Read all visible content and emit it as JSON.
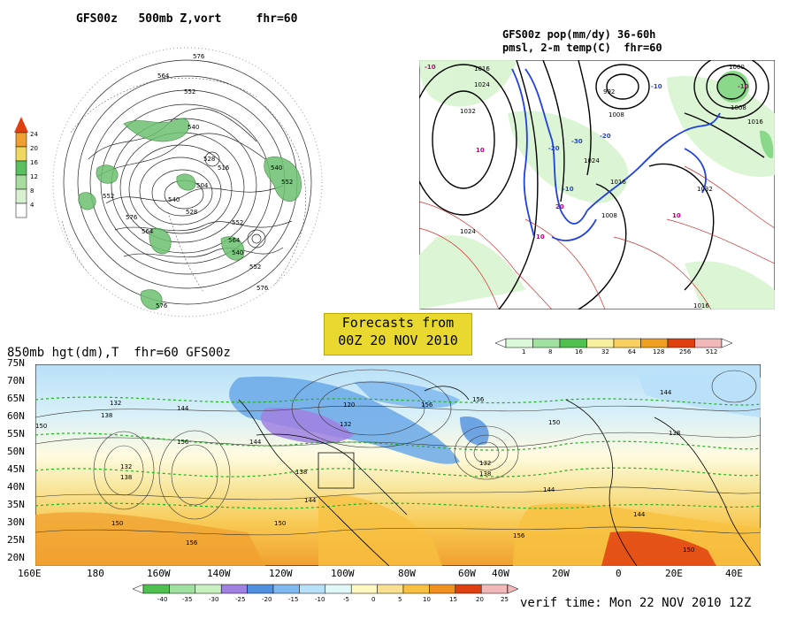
{
  "panel_500mb": {
    "title": "GFS00z   500mb Z,vort     fhr=60",
    "contour_labels": [
      "576",
      "564",
      "552",
      "540",
      "528",
      "516",
      "504",
      "540",
      "552",
      "576",
      "564",
      "552",
      "540",
      "528",
      "552",
      "576",
      "576",
      "552",
      "564",
      "540"
    ],
    "colorbar": {
      "labels": [
        "4",
        "8",
        "12",
        "16",
        "20",
        "24"
      ],
      "colors": [
        "#ffffff",
        "#a8dca0",
        "#5cc060",
        "#f0d860",
        "#f0a030",
        "#e04010"
      ]
    }
  },
  "panel_precip": {
    "title_line1": "GFS00z pop(mm/dy) 36-60h",
    "title_line2": "pmsl, 2-m temp(C)  fhr=60",
    "pressure_labels": [
      "1016",
      "1024",
      "1032",
      "1024",
      "1008",
      "1000",
      "992",
      "1008",
      "1016",
      "1032",
      "1016",
      "1008",
      "1016",
      "1024"
    ],
    "temp_labels": [
      "-10",
      "10",
      "-20",
      "-30",
      "-10",
      "-20",
      "-10",
      "10",
      "20",
      "10",
      "-10"
    ],
    "colorbar": {
      "labels": [
        "1",
        "8",
        "16",
        "32",
        "64",
        "128",
        "256",
        "512"
      ],
      "colors": [
        "#d8f8d8",
        "#a0e0a0",
        "#50c050",
        "#f8f0a0",
        "#f8d060",
        "#f0a020",
        "#e04010",
        "#f0b8b8"
      ]
    }
  },
  "forecast_box": {
    "line1": "Forecasts from",
    "line2": "00Z 20 NOV 2010"
  },
  "panel_850mb": {
    "title": "850mb hgt(dm),T  fhr=60 GFS00z",
    "lat_labels": [
      "75N",
      "70N",
      "65N",
      "60N",
      "55N",
      "50N",
      "45N",
      "40N",
      "35N",
      "30N",
      "25N",
      "20N"
    ],
    "lon_labels": [
      "160E",
      "180",
      "160W",
      "140W",
      "120W",
      "100W",
      "80W",
      "60W",
      "40W",
      "20W",
      "0",
      "20E",
      "40E"
    ],
    "contour_labels": [
      "132",
      "138",
      "144",
      "156",
      "132",
      "138",
      "150",
      "156",
      "144",
      "150",
      "120",
      "132",
      "138",
      "144",
      "150",
      "156",
      "132",
      "138",
      "156",
      "144",
      "150",
      "144",
      "138",
      "144",
      "150",
      "156"
    ],
    "colorbar": {
      "labels": [
        "-40",
        "-35",
        "-30",
        "-25",
        "-20",
        "-15",
        "-10",
        "-5",
        "0",
        "5",
        "10",
        "15",
        "20",
        "25"
      ],
      "colors": [
        "#50c050",
        "#a0e0a0",
        "#c8f0c0",
        "#a080e0",
        "#5090e0",
        "#80b8f0",
        "#b8e0f8",
        "#e0f8f8",
        "#fff8c0",
        "#f8e090",
        "#f8c040",
        "#f09020",
        "#e04010",
        "#f0b8b8"
      ]
    }
  },
  "verif_time": "verif time: Mon 22 NOV 2010 12Z"
}
